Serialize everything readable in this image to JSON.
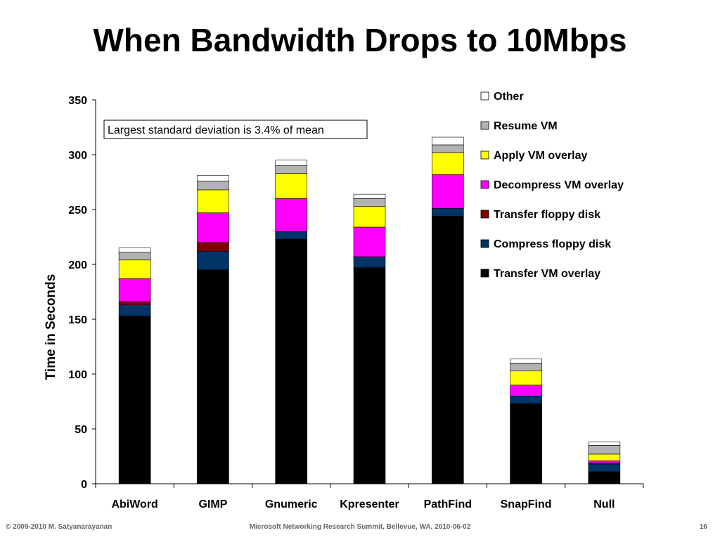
{
  "slide": {
    "title": "When Bandwidth Drops to 10Mbps",
    "footer_left": "© 2009-2010  M. Satyanarayanan",
    "footer_center": "Microsoft Networking Research Summit, Bellevue, WA,  2010-06-02",
    "footer_right": "16"
  },
  "chart_data": {
    "type": "bar",
    "stacked": true,
    "title": "",
    "xlabel": "",
    "ylabel": "Time in Seconds",
    "ylim": [
      0,
      350
    ],
    "yticks": [
      0,
      50,
      100,
      150,
      200,
      250,
      300,
      350
    ],
    "grid": false,
    "legend_position": "top-right",
    "annotation": "Largest standard deviation is  3.4% of mean",
    "categories": [
      "AbiWord",
      "GIMP",
      "Gnumeric",
      "Kpresenter",
      "PathFind",
      "SnapFind",
      "Null"
    ],
    "series": [
      {
        "name": "Transfer VM overlay",
        "color": "#000000",
        "values": [
          153,
          195,
          223,
          197,
          244,
          73,
          11
        ]
      },
      {
        "name": "Compress floppy disk",
        "color": "#003366",
        "values": [
          10,
          17,
          7,
          10,
          7,
          7,
          7
        ]
      },
      {
        "name": "Transfer floppy disk",
        "color": "#800000",
        "values": [
          3,
          8,
          0,
          0,
          0,
          0,
          1
        ]
      },
      {
        "name": "Decompress VM overlay",
        "color": "#ff00ff",
        "values": [
          21,
          27,
          30,
          27,
          31,
          10,
          2
        ]
      },
      {
        "name": "Apply VM overlay",
        "color": "#ffff00",
        "values": [
          17,
          21,
          23,
          19,
          20,
          13,
          6
        ]
      },
      {
        "name": "Resume VM",
        "color": "#b2b2b2",
        "values": [
          7,
          8,
          7,
          7,
          7,
          7,
          8
        ]
      },
      {
        "name": "Other",
        "color": "#ffffff",
        "values": [
          4,
          5,
          5,
          4,
          7,
          4,
          3
        ]
      }
    ]
  }
}
